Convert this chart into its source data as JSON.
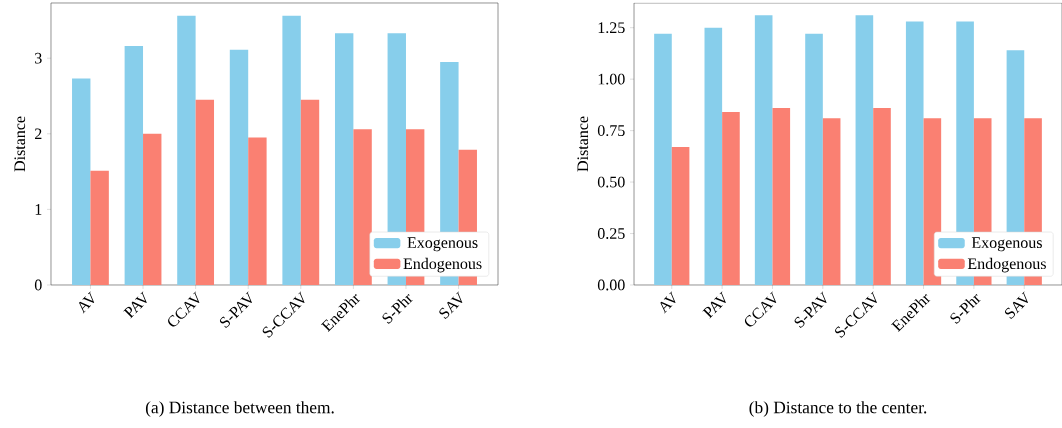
{
  "chart_data": [
    {
      "type": "bar",
      "ylabel": "Distance",
      "categories": [
        "AV",
        "PAV",
        "CCAV",
        "S-PAV",
        "S-CCAV",
        "EnePhr",
        "S-Phr",
        "SAV"
      ],
      "series": [
        {
          "name": "Exogenous",
          "color": "#87ceeb",
          "values": [
            2.73,
            3.16,
            3.56,
            3.11,
            3.56,
            3.33,
            3.33,
            2.95
          ]
        },
        {
          "name": "Endogenous",
          "color": "#fa8072",
          "values": [
            1.51,
            2.0,
            2.45,
            1.95,
            2.45,
            2.06,
            2.06,
            1.79
          ]
        }
      ],
      "ylim": [
        0,
        3.73
      ],
      "yticks": [
        0,
        1,
        2,
        3
      ],
      "legend": "bottom right",
      "annotations": [
        "(a) Distance between them."
      ]
    },
    {
      "type": "bar",
      "ylabel": "Distance",
      "categories": [
        "AV",
        "PAV",
        "CCAV",
        "S-PAV",
        "S-CCAV",
        "EnePhr",
        "S-Phr",
        "SAV"
      ],
      "series": [
        {
          "name": "Exogenous",
          "color": "#87ceeb",
          "values": [
            1.22,
            1.25,
            1.31,
            1.22,
            1.31,
            1.28,
            1.28,
            1.14
          ]
        },
        {
          "name": "Endogenous",
          "color": "#fa8072",
          "values": [
            0.67,
            0.84,
            0.86,
            0.81,
            0.86,
            0.81,
            0.81,
            0.81
          ]
        }
      ],
      "ylim": [
        0,
        1.37
      ],
      "yticks": [
        {
          "value": 0,
          "label": "0.00"
        },
        {
          "value": 0.25,
          "label": "0.25"
        },
        {
          "value": 0.5,
          "label": "0.50"
        },
        {
          "value": 0.75,
          "label": "0.75"
        },
        {
          "value": 1,
          "label": "1.00"
        },
        {
          "value": 1.25,
          "label": "1.25"
        }
      ],
      "legend": "bottom right",
      "annotations": [
        "(b) Distance to the center."
      ]
    }
  ]
}
